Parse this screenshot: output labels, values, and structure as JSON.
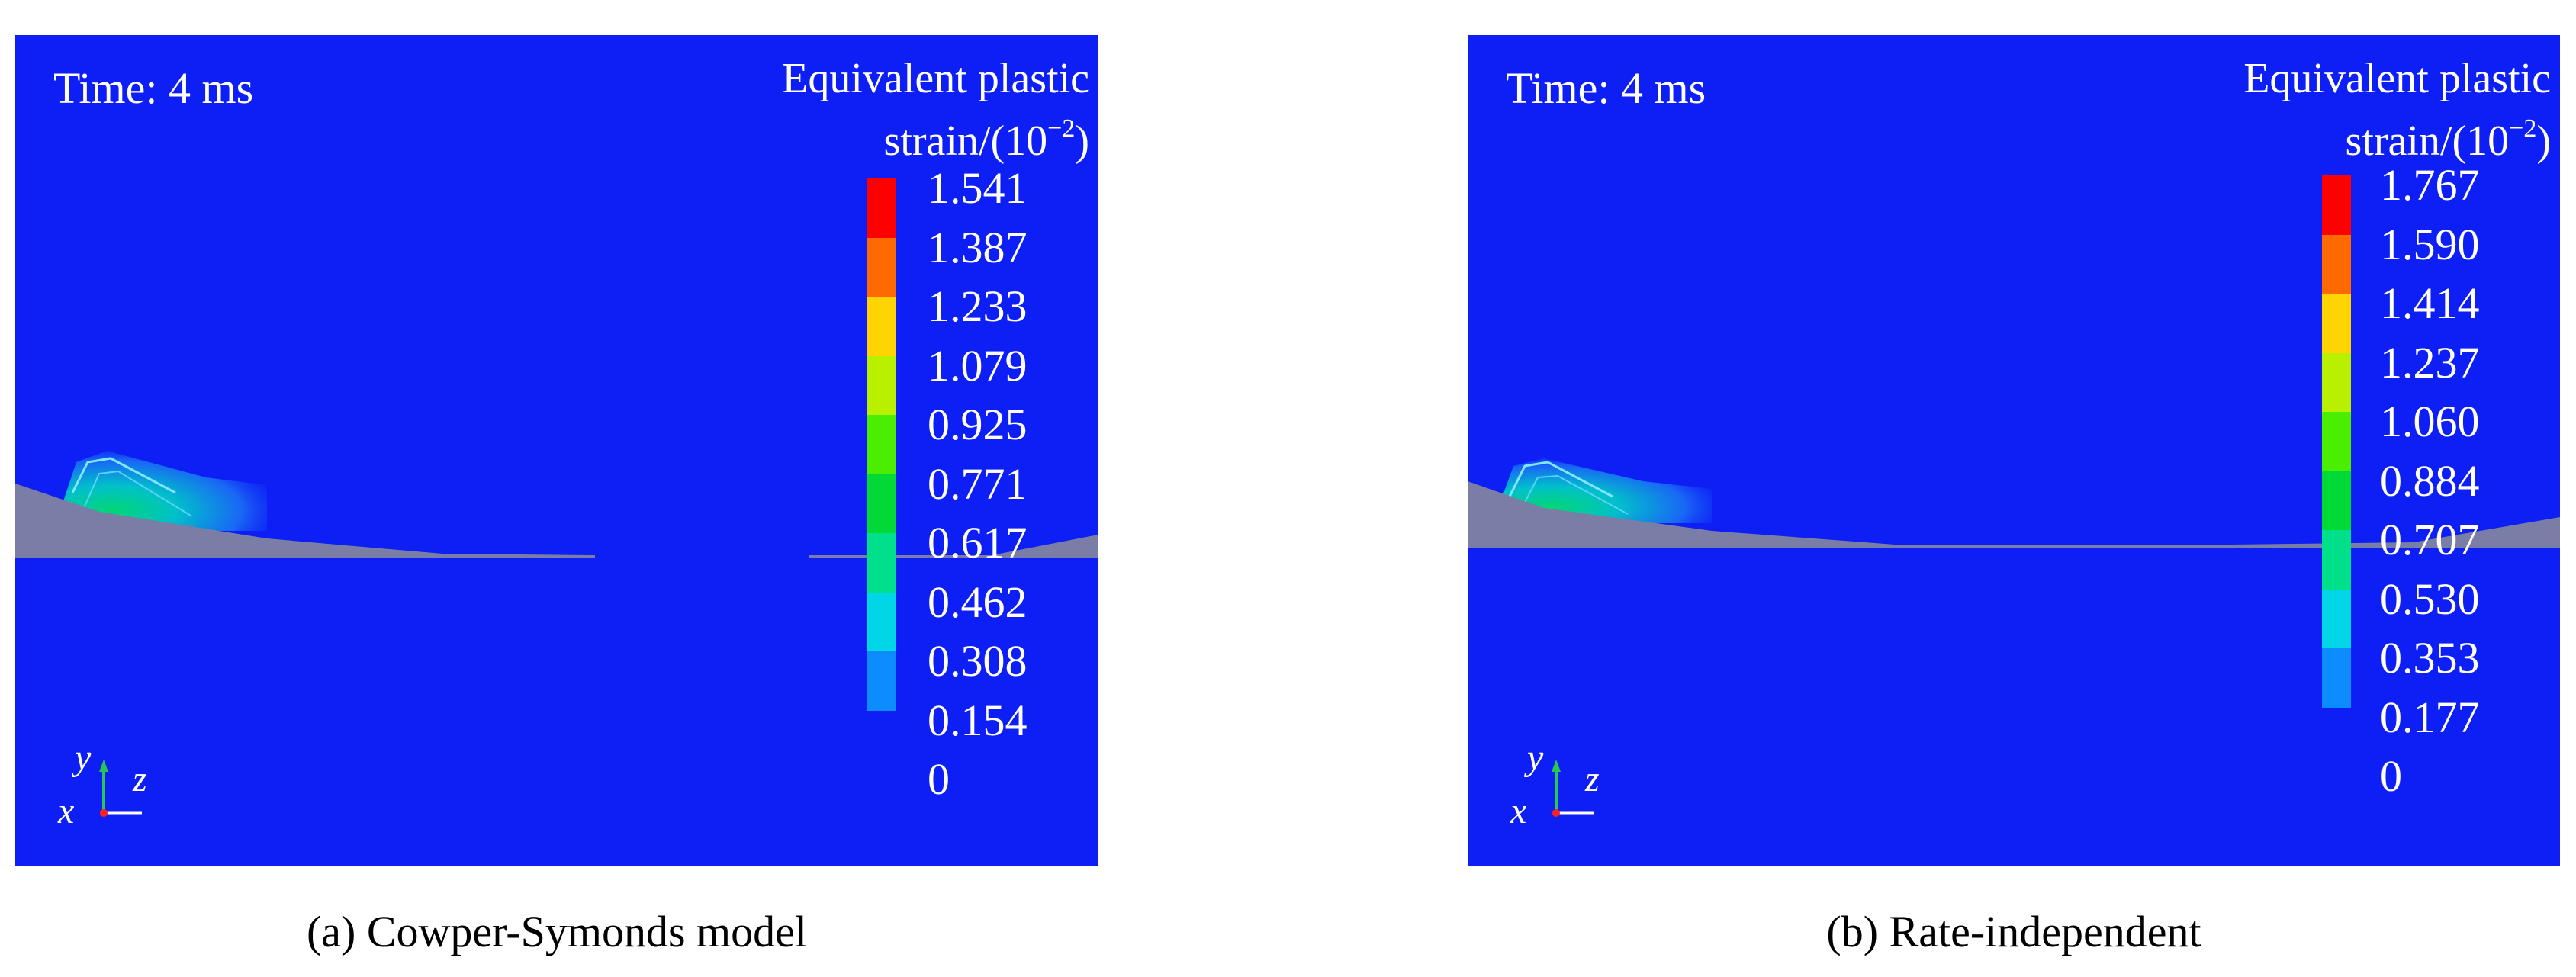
{
  "panels": [
    {
      "time": "Time: 4 ms",
      "legend_title_line1": "Equivalent plastic",
      "legend_title_line2": "strain/(10",
      "legend_exponent": "−2",
      "legend_close": ")",
      "legend_values": [
        "1.541",
        "1.387",
        "1.233",
        "1.079",
        "0.925",
        "0.771",
        "0.617",
        "0.462",
        "0.308",
        "0.154",
        "0"
      ],
      "axes": {
        "y": "y",
        "x": "x",
        "z": "z"
      },
      "caption": "(a) Cowper-Symonds model"
    },
    {
      "time": "Time: 4 ms",
      "legend_title_line1": "Equivalent plastic",
      "legend_title_line2": "strain/(10",
      "legend_exponent": "−2",
      "legend_close": ")",
      "legend_values": [
        "1.767",
        "1.590",
        "1.414",
        "1.237",
        "1.060",
        "0.884",
        "0.707",
        "0.530",
        "0.353",
        "0.177",
        "0"
      ],
      "axes": {
        "y": "y",
        "x": "x",
        "z": "z"
      },
      "caption": "(b) Rate-independent"
    }
  ],
  "colors": {
    "background": "#0d1ff5",
    "colorbar": [
      "#ff0000",
      "#ff6a00",
      "#ffd400",
      "#b8f000",
      "#4cee00",
      "#00d936",
      "#00e08a",
      "#00d6e6",
      "#0d8cff",
      "#0d1ff5"
    ],
    "geometry": "#7a7ea6"
  }
}
